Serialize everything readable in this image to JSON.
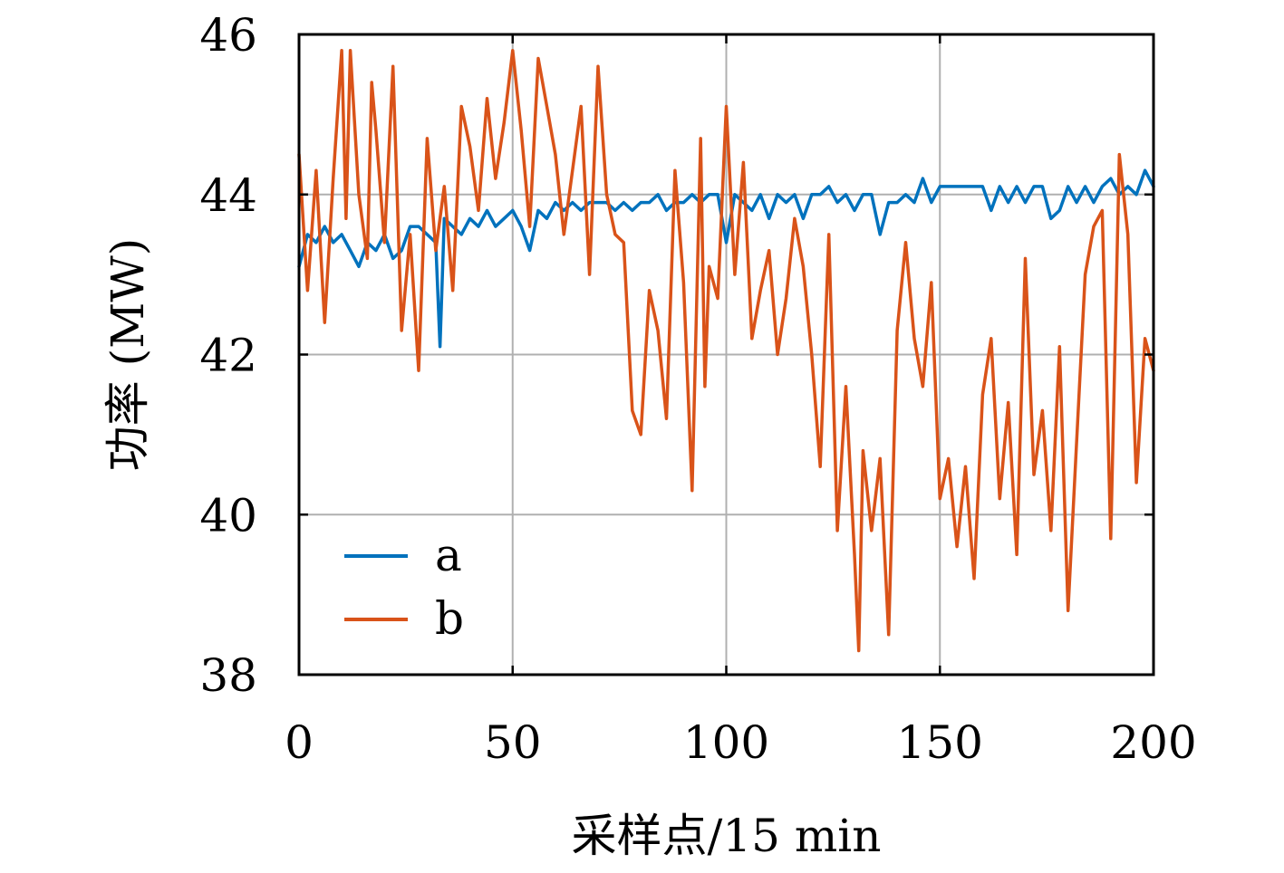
{
  "chart_data": {
    "type": "line",
    "title": "",
    "xlabel": "采样点/15 min",
    "ylabel": "功率 (MW)",
    "xlim": [
      0,
      200
    ],
    "ylim": [
      38,
      46
    ],
    "xticks": [
      0,
      50,
      100,
      150,
      200
    ],
    "yticks": [
      38,
      40,
      42,
      44,
      46
    ],
    "xtick_labels": [
      "0",
      "50",
      "100",
      "150",
      "200"
    ],
    "ytick_labels": [
      "38",
      "40",
      "42",
      "44",
      "46"
    ],
    "grid": true,
    "legend_position": "lower-left",
    "series": [
      {
        "name": "a",
        "color": "#0072BD",
        "x": [
          0,
          2,
          4,
          6,
          8,
          10,
          12,
          14,
          16,
          18,
          20,
          22,
          24,
          26,
          28,
          30,
          32,
          33,
          34,
          36,
          38,
          40,
          42,
          44,
          46,
          48,
          50,
          52,
          54,
          56,
          58,
          60,
          62,
          64,
          66,
          68,
          70,
          72,
          74,
          76,
          78,
          80,
          82,
          84,
          86,
          88,
          90,
          92,
          94,
          96,
          98,
          100,
          102,
          104,
          106,
          108,
          110,
          112,
          114,
          116,
          118,
          120,
          122,
          124,
          126,
          128,
          130,
          132,
          134,
          136,
          138,
          140,
          142,
          144,
          146,
          148,
          150,
          152,
          154,
          156,
          158,
          160,
          162,
          164,
          166,
          168,
          170,
          172,
          174,
          176,
          178,
          180,
          182,
          184,
          186,
          188,
          190,
          192,
          194,
          196,
          198,
          200
        ],
        "y": [
          43.1,
          43.5,
          43.4,
          43.6,
          43.4,
          43.5,
          43.3,
          43.1,
          43.4,
          43.3,
          43.5,
          43.2,
          43.3,
          43.6,
          43.6,
          43.5,
          43.4,
          42.1,
          43.7,
          43.6,
          43.5,
          43.7,
          43.6,
          43.8,
          43.6,
          43.7,
          43.8,
          43.6,
          43.3,
          43.8,
          43.7,
          43.9,
          43.8,
          43.9,
          43.8,
          43.9,
          43.9,
          43.9,
          43.8,
          43.9,
          43.8,
          43.9,
          43.9,
          44.0,
          43.8,
          43.9,
          43.9,
          44.0,
          43.9,
          44.0,
          44.0,
          43.4,
          44.0,
          43.9,
          43.8,
          44.0,
          43.7,
          44.0,
          43.9,
          44.0,
          43.7,
          44.0,
          44.0,
          44.1,
          43.9,
          44.0,
          43.8,
          44.0,
          44.0,
          43.5,
          43.9,
          43.9,
          44.0,
          43.9,
          44.2,
          43.9,
          44.1,
          44.1,
          44.1,
          44.1,
          44.1,
          44.1,
          43.8,
          44.1,
          43.9,
          44.1,
          43.9,
          44.1,
          44.1,
          43.7,
          43.8,
          44.1,
          43.9,
          44.1,
          43.9,
          44.1,
          44.2,
          44.0,
          44.1,
          44.0,
          44.3,
          44.1
        ]
      },
      {
        "name": "b",
        "color": "#D95319",
        "x": [
          0,
          2,
          4,
          6,
          8,
          10,
          11,
          12,
          14,
          16,
          17,
          18,
          20,
          22,
          24,
          26,
          28,
          30,
          32,
          34,
          36,
          38,
          40,
          42,
          44,
          46,
          48,
          50,
          52,
          54,
          56,
          58,
          60,
          62,
          64,
          66,
          68,
          70,
          72,
          74,
          76,
          78,
          80,
          82,
          84,
          86,
          88,
          90,
          92,
          94,
          95,
          96,
          98,
          100,
          102,
          104,
          106,
          108,
          110,
          112,
          114,
          116,
          118,
          120,
          122,
          124,
          126,
          128,
          130,
          131,
          132,
          134,
          136,
          138,
          140,
          142,
          144,
          146,
          148,
          150,
          152,
          154,
          156,
          158,
          160,
          162,
          164,
          166,
          168,
          170,
          172,
          174,
          176,
          178,
          180,
          182,
          184,
          186,
          188,
          190,
          192,
          194,
          196,
          198,
          200
        ],
        "y": [
          44.5,
          42.8,
          44.3,
          42.4,
          44.2,
          45.8,
          43.7,
          45.8,
          44.0,
          43.2,
          45.4,
          44.8,
          43.4,
          45.6,
          42.3,
          43.5,
          41.8,
          44.7,
          43.3,
          44.1,
          42.8,
          45.1,
          44.6,
          43.8,
          45.2,
          44.2,
          44.9,
          45.8,
          44.8,
          43.6,
          45.7,
          45.1,
          44.5,
          43.5,
          44.3,
          45.1,
          43.0,
          45.6,
          44.0,
          43.5,
          43.4,
          41.3,
          41.0,
          42.8,
          42.3,
          41.2,
          44.3,
          42.9,
          40.3,
          44.7,
          41.6,
          43.1,
          42.7,
          45.1,
          43.0,
          44.4,
          42.2,
          42.8,
          43.3,
          42.0,
          42.7,
          43.7,
          43.1,
          42.0,
          40.6,
          43.5,
          39.8,
          41.6,
          39.5,
          38.3,
          40.8,
          39.8,
          40.7,
          38.5,
          42.3,
          43.4,
          42.2,
          41.6,
          42.9,
          40.2,
          40.7,
          39.6,
          40.6,
          39.2,
          41.5,
          42.2,
          40.2,
          41.4,
          39.5,
          43.2,
          40.5,
          41.3,
          39.8,
          42.1,
          38.8,
          40.9,
          43.0,
          43.6,
          43.8,
          39.7,
          44.5,
          43.5,
          40.4,
          42.2,
          41.8
        ]
      }
    ]
  }
}
